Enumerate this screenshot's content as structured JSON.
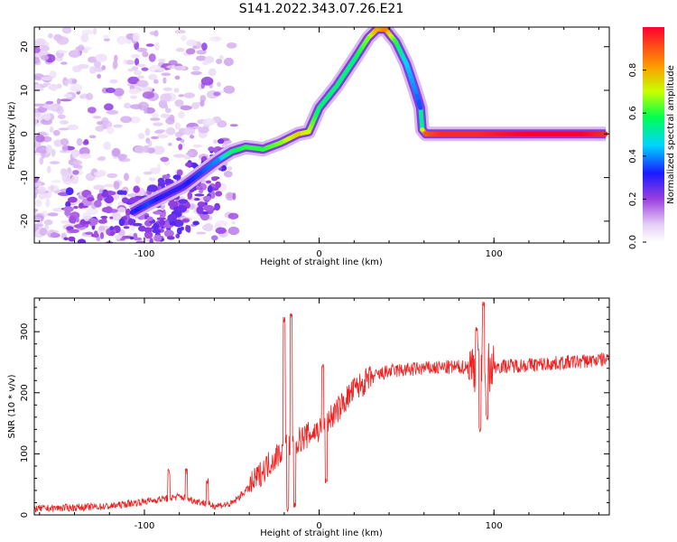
{
  "title": "S141.2022.343.07.26.E21",
  "chart_data": [
    {
      "type": "heatmap",
      "xlabel": "Height of straight line (km)",
      "ylabel": "Frequency (Hz)",
      "xlim": [
        -163,
        166
      ],
      "ylim": [
        -25,
        24.5
      ],
      "x_ticks": [
        "-100",
        "0",
        "100"
      ],
      "y_ticks": [
        "-20",
        "-10",
        "0",
        "10",
        "20"
      ],
      "colorbar": {
        "label": "Normalized spectral amplitude",
        "range": [
          0,
          1
        ],
        "ticks": [
          "0.0",
          "0.2",
          "0.4",
          "0.6",
          "0.8"
        ],
        "colors": [
          "#ffffff",
          "#e6d0f5",
          "#9a3fe0",
          "#1a1aff",
          "#00d5ff",
          "#00ff50",
          "#c8ff00",
          "#ff9900",
          "#ff0030"
        ]
      },
      "ridge": {
        "x": [
          -107,
          -98,
          -88,
          -78,
          -68,
          -58,
          -50,
          -42,
          -32,
          -22,
          -12,
          -6,
          0,
          10,
          20,
          28,
          33,
          38,
          44,
          50,
          55,
          58,
          59,
          61,
          70,
          90,
          120,
          150,
          164
        ],
        "freq": [
          -18,
          -16,
          -14,
          -12,
          -9,
          -6,
          -4,
          -3,
          -3.5,
          -2,
          0,
          0.5,
          6,
          11,
          17,
          22,
          24,
          24,
          21,
          16,
          10,
          6,
          1,
          0,
          0,
          0,
          0,
          0,
          0
        ],
        "amplitude": [
          0.3,
          0.35,
          0.3,
          0.3,
          0.35,
          0.4,
          0.55,
          0.6,
          0.6,
          0.65,
          0.75,
          0.7,
          0.55,
          0.55,
          0.55,
          0.65,
          0.8,
          0.85,
          0.6,
          0.45,
          0.4,
          0.35,
          0.7,
          0.9,
          0.95,
          0.95,
          1.0,
          1.0,
          0.95
        ]
      }
    },
    {
      "type": "line",
      "xlabel": "Height of straight line (km)",
      "ylabel": "SNR (10 * v/v)",
      "xlim": [
        -163,
        166
      ],
      "ylim": [
        0,
        355
      ],
      "x_ticks": [
        "-100",
        "0",
        "100"
      ],
      "y_ticks": [
        "0",
        "100",
        "200",
        "300"
      ],
      "color": "#ee2020",
      "baseline": {
        "x": [
          -163,
          -120,
          -100,
          -80,
          -60,
          -50,
          -40,
          -30,
          -20,
          -10,
          0,
          10,
          20,
          30,
          40,
          60,
          80,
          100,
          130,
          166
        ],
        "y": [
          10,
          14,
          22,
          30,
          15,
          18,
          45,
          80,
          110,
          125,
          140,
          170,
          205,
          225,
          235,
          240,
          242,
          243,
          247,
          255
        ]
      },
      "spikes": [
        {
          "x": -86,
          "y": 70
        },
        {
          "x": -76,
          "y": 72
        },
        {
          "x": -64,
          "y": 55
        },
        {
          "x": -20,
          "y": 320
        },
        {
          "x": -18,
          "y": 10
        },
        {
          "x": -16,
          "y": 325
        },
        {
          "x": -14,
          "y": 15
        },
        {
          "x": 2,
          "y": 245
        },
        {
          "x": 4,
          "y": 55
        },
        {
          "x": 90,
          "y": 305
        },
        {
          "x": 92,
          "y": 140
        },
        {
          "x": 94,
          "y": 345
        },
        {
          "x": 96,
          "y": 160
        }
      ]
    }
  ]
}
